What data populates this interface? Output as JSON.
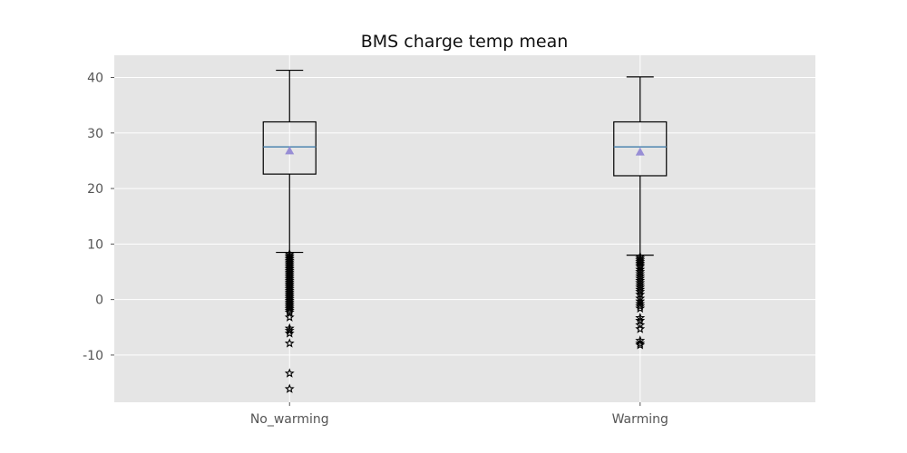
{
  "chart_data": {
    "type": "boxplot",
    "title": "BMS charge temp mean",
    "xlabel": "",
    "ylabel": "",
    "categories": [
      "No_warming",
      "Warming"
    ],
    "ylim": [
      -18.5,
      44
    ],
    "yticks": [
      -10,
      0,
      10,
      20,
      30,
      40
    ],
    "grid": true,
    "style": "ggplot",
    "boxes": [
      {
        "category": "No_warming",
        "whisker_low": 8.5,
        "q1": 22.6,
        "median": 27.5,
        "mean": 26.8,
        "q3": 32.0,
        "whisker_high": 41.3,
        "outliers": [
          8.2,
          7.9,
          7.6,
          7.3,
          7.0,
          6.7,
          6.4,
          6.1,
          5.8,
          5.5,
          5.2,
          4.9,
          4.6,
          4.3,
          4.0,
          3.7,
          3.4,
          3.1,
          2.8,
          2.5,
          2.2,
          1.9,
          1.6,
          1.3,
          1.0,
          0.7,
          0.4,
          0.1,
          -0.2,
          -0.5,
          -0.8,
          -1.1,
          -1.4,
          -1.7,
          -2.0,
          -2.3,
          -3.2,
          -5.2,
          -5.6,
          -6.1,
          -7.9,
          -13.3,
          -16.1
        ]
      },
      {
        "category": "Warming",
        "whisker_low": 8.0,
        "q1": 22.3,
        "median": 27.5,
        "mean": 26.6,
        "q3": 32.0,
        "whisker_high": 40.1,
        "outliers": [
          7.7,
          7.4,
          7.1,
          6.8,
          6.5,
          6.2,
          5.9,
          5.4,
          5.0,
          4.6,
          4.2,
          3.8,
          3.4,
          3.0,
          2.6,
          2.2,
          1.8,
          1.4,
          0.9,
          0.2,
          -0.3,
          -0.8,
          -1.2,
          -1.6,
          -3.3,
          -3.8,
          -4.6,
          -5.3,
          -7.4,
          -7.9,
          -8.2
        ]
      }
    ],
    "colors": {
      "background": "#e5e5e5",
      "grid": "#ffffff",
      "box": "#000000",
      "median": "#4f86b0",
      "mean": "#988ed5",
      "outlier": "#000000"
    },
    "markers": {
      "mean": "triangle",
      "outlier": "star"
    }
  }
}
